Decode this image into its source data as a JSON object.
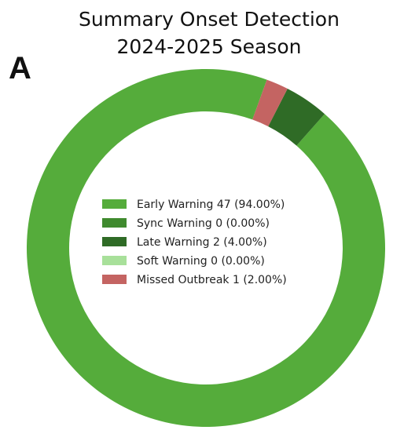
{
  "panel_label": "A",
  "chart_data": {
    "type": "pie",
    "title": [
      "Summary Onset Detection",
      "2024-2025 Season"
    ],
    "legend_placement": "center",
    "slices": [
      {
        "label": "Early Warning",
        "count": 47,
        "percent": 94.0,
        "color": "#55ac3b",
        "legend": "Early Warning 47 (94.00%)"
      },
      {
        "label": "Sync Warning",
        "count": 0,
        "percent": 0.0,
        "color": "#3f8a2e",
        "legend": "Sync Warning 0 (0.00%)"
      },
      {
        "label": "Late Warning",
        "count": 2,
        "percent": 4.0,
        "color": "#2f6b26",
        "legend": "Late Warning 2 (4.00%)"
      },
      {
        "label": "Soft Warning",
        "count": 0,
        "percent": 0.0,
        "color": "#a8e09a",
        "legend": "Soft Warning 0 (0.00%)"
      },
      {
        "label": "Missed Outbreak",
        "count": 1,
        "percent": 2.0,
        "color": "#c46462",
        "legend": "Missed Outbreak 1 (2.00%)"
      }
    ]
  }
}
